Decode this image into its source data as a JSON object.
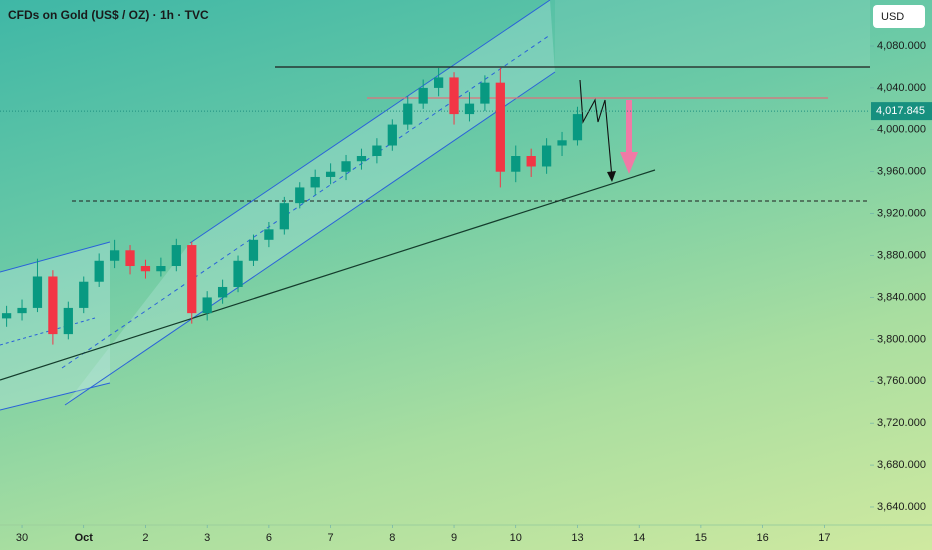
{
  "chart_data": {
    "type": "candlestick",
    "title": "CFDs on Gold (US$ / OZ) · 1h · TVC",
    "currency": "USD",
    "up_color": "#089981",
    "down_color": "#f23645",
    "x": [
      -0.25,
      0,
      0.25,
      0.5,
      0.75,
      1,
      1.25,
      1.5,
      1.75,
      2,
      2.25,
      2.5,
      2.75,
      3,
      3.25,
      3.5,
      3.75,
      4,
      4.25,
      4.5,
      4.75,
      5,
      5.25,
      5.5,
      5.75,
      6,
      6.25,
      6.5,
      6.75,
      7,
      7.25,
      7.5,
      7.75,
      8,
      8.25,
      8.5,
      8.75,
      9
    ],
    "open": [
      3820,
      3825,
      3830,
      3860,
      3805,
      3830,
      3855,
      3875,
      3885,
      3870,
      3865,
      3870,
      3890,
      3825,
      3840,
      3850,
      3875,
      3895,
      3905,
      3930,
      3945,
      3955,
      3960,
      3970,
      3975,
      3985,
      4005,
      4025,
      4040,
      4050,
      4015,
      4025,
      4045,
      3960,
      3975,
      3965,
      3985,
      3990
    ],
    "high": [
      3832,
      3838,
      3877,
      3866,
      3836,
      3860,
      3882,
      3895,
      3890,
      3876,
      3878,
      3896,
      3893,
      3846,
      3857,
      3880,
      3900,
      3912,
      3936,
      3950,
      3962,
      3968,
      3976,
      3982,
      3992,
      4010,
      4032,
      4048,
      4059,
      4055,
      4036,
      4052,
      4059,
      3985,
      3982,
      3992,
      3998,
      4022
    ],
    "low": [
      3812,
      3818,
      3826,
      3795,
      3800,
      3825,
      3850,
      3868,
      3862,
      3858,
      3860,
      3865,
      3815,
      3818,
      3834,
      3845,
      3870,
      3888,
      3900,
      3925,
      3938,
      3948,
      3952,
      3962,
      3968,
      3980,
      4000,
      4020,
      4032,
      4005,
      4008,
      4018,
      3945,
      3950,
      3955,
      3958,
      3975,
      3985
    ],
    "close": [
      3825,
      3830,
      3860,
      3805,
      3830,
      3855,
      3875,
      3885,
      3870,
      3865,
      3870,
      3890,
      3825,
      3840,
      3850,
      3875,
      3895,
      3905,
      3930,
      3945,
      3955,
      3960,
      3970,
      3975,
      3985,
      4005,
      4025,
      4040,
      4050,
      4015,
      4025,
      4045,
      3960,
      3975,
      3965,
      3985,
      3990,
      4015
    ],
    "xlim": [
      -0.357,
      13.74
    ],
    "xticks": [
      {
        "value": 0,
        "label": "30"
      },
      {
        "value": 1,
        "label": "Oct"
      },
      {
        "value": 2,
        "label": "2"
      },
      {
        "value": 3,
        "label": "3"
      },
      {
        "value": 4,
        "label": "6"
      },
      {
        "value": 5,
        "label": "7"
      },
      {
        "value": 6,
        "label": "8"
      },
      {
        "value": 7,
        "label": "9"
      },
      {
        "value": 8,
        "label": "10"
      },
      {
        "value": 9,
        "label": "13"
      },
      {
        "value": 10,
        "label": "14"
      },
      {
        "value": 11,
        "label": "15"
      },
      {
        "value": 12,
        "label": "16"
      },
      {
        "value": 13,
        "label": "17"
      }
    ],
    "ylim": [
      3622.8,
      4123.9
    ],
    "yticks": [
      {
        "value": 3640,
        "label": "3,640.000"
      },
      {
        "value": 3680,
        "label": "3,680.000"
      },
      {
        "value": 3720,
        "label": "3,720.000"
      },
      {
        "value": 3760,
        "label": "3,760.000"
      },
      {
        "value": 3800,
        "label": "3,800.000"
      },
      {
        "value": 3840,
        "label": "3,840.000"
      },
      {
        "value": 3880,
        "label": "3,880.000"
      },
      {
        "value": 3920,
        "label": "3,920.000"
      },
      {
        "value": 3960,
        "label": "3,960.000"
      },
      {
        "value": 4000,
        "label": "4,000.000"
      },
      {
        "value": 4040,
        "label": "4,040.000"
      },
      {
        "value": 4080,
        "label": "4,080.000"
      }
    ],
    "last_price": {
      "value": 4017.845,
      "label": "4,017.845"
    }
  }
}
